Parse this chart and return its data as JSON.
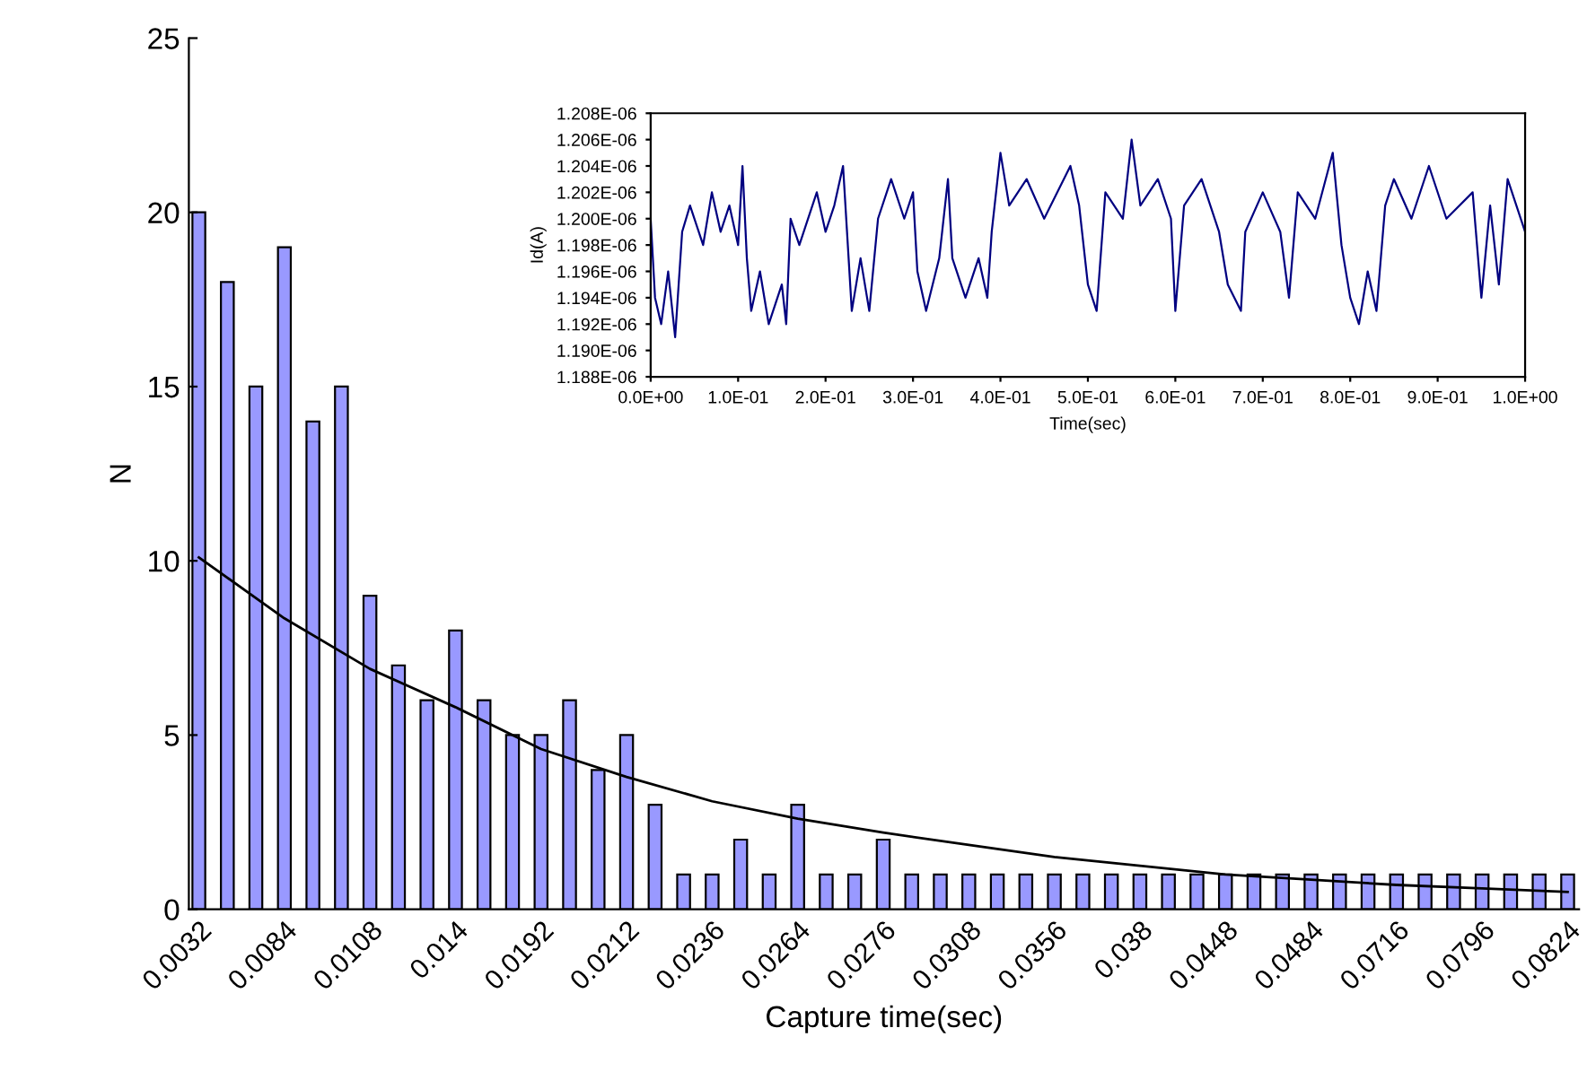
{
  "chart_data": [
    {
      "type": "bar",
      "xlabel": "Capture time(sec)",
      "ylabel": "N",
      "categories": [
        "0.0032",
        null,
        null,
        "0.0084",
        null,
        null,
        "0.0108",
        null,
        null,
        "0.014",
        null,
        null,
        "0.0192",
        null,
        null,
        "0.0212",
        null,
        null,
        "0.0236",
        null,
        null,
        "0.0264",
        null,
        null,
        "0.0276",
        null,
        null,
        "0.0308",
        null,
        null,
        "0.0356",
        null,
        null,
        "0.038",
        null,
        null,
        "0.0448",
        null,
        null,
        "0.0484",
        null,
        null,
        "0.0716",
        null,
        null,
        "0.0796",
        null,
        null,
        "0.0824"
      ],
      "series": [
        {
          "type": "bar",
          "color": "#9999ff",
          "values": [
            20,
            18,
            15,
            19,
            14,
            15,
            9,
            7,
            6,
            8,
            6,
            5,
            5,
            6,
            4,
            5,
            3,
            1,
            1,
            2,
            1,
            3,
            1,
            1,
            2,
            1,
            1,
            1,
            1,
            1,
            1,
            1,
            1,
            1,
            1,
            1,
            1,
            1,
            1,
            1,
            1,
            1,
            1,
            1,
            1,
            1,
            1,
            1,
            1
          ]
        },
        {
          "type": "line",
          "color": "#000000",
          "x": [
            "0.0032",
            "0.0084",
            "0.0108",
            "0.014",
            "0.0192",
            "0.0212",
            "0.0236",
            "0.0264",
            "0.0276",
            "0.0308",
            "0.0356",
            "0.038",
            "0.0448",
            "0.0484",
            "0.0716",
            "0.0796",
            "0.0824"
          ],
          "values": [
            10.1,
            8.35,
            6.9,
            5.8,
            4.6,
            3.8,
            3.1,
            2.6,
            2.2,
            1.85,
            1.5,
            1.25,
            1.0,
            0.85,
            0.7,
            0.6,
            0.5
          ]
        }
      ],
      "ylim": [
        0,
        25
      ],
      "yticks": [
        0,
        5,
        10,
        15,
        20,
        25
      ],
      "grid": false,
      "legend": false
    },
    {
      "type": "line",
      "xlabel": "Time(sec)",
      "ylabel": "Id(A)",
      "marker": "none",
      "grid": false,
      "legend": false,
      "xlim": [
        0,
        1
      ],
      "xticks": [
        {
          "value": 0,
          "label": "0.0E+00"
        },
        {
          "value": 0.1,
          "label": "1.0E-01"
        },
        {
          "value": 0.2,
          "label": "2.0E-01"
        },
        {
          "value": 0.3,
          "label": "3.0E-01"
        },
        {
          "value": 0.4,
          "label": "4.0E-01"
        },
        {
          "value": 0.5,
          "label": "5.0E-01"
        },
        {
          "value": 0.6,
          "label": "6.0E-01"
        },
        {
          "value": 0.7,
          "label": "7.0E-01"
        },
        {
          "value": 0.8,
          "label": "8.0E-01"
        },
        {
          "value": 0.9,
          "label": "9.0E-01"
        },
        {
          "value": 1.0,
          "label": "1.0E+00"
        }
      ],
      "ylim": [
        1.188e-06,
        1.208e-06
      ],
      "yticks": [
        {
          "value": 1.188e-06,
          "label": "1.188E-06"
        },
        {
          "value": 1.19e-06,
          "label": "1.190E-06"
        },
        {
          "value": 1.192e-06,
          "label": "1.192E-06"
        },
        {
          "value": 1.194e-06,
          "label": "1.194E-06"
        },
        {
          "value": 1.196e-06,
          "label": "1.196E-06"
        },
        {
          "value": 1.198e-06,
          "label": "1.198E-06"
        },
        {
          "value": 1.2e-06,
          "label": "1.200E-06"
        },
        {
          "value": 1.202e-06,
          "label": "1.202E-06"
        },
        {
          "value": 1.204e-06,
          "label": "1.204E-06"
        },
        {
          "value": 1.206e-06,
          "label": "1.206E-06"
        },
        {
          "value": 1.208e-06,
          "label": "1.208E-06"
        }
      ],
      "series": [
        {
          "color": "#000080",
          "x": [
            0.0,
            0.005,
            0.012,
            0.02,
            0.028,
            0.032,
            0.036,
            0.045,
            0.06,
            0.07,
            0.08,
            0.09,
            0.1,
            0.105,
            0.11,
            0.115,
            0.125,
            0.135,
            0.15,
            0.155,
            0.16,
            0.17,
            0.19,
            0.2,
            0.21,
            0.22,
            0.23,
            0.24,
            0.25,
            0.26,
            0.275,
            0.29,
            0.3,
            0.305,
            0.315,
            0.33,
            0.34,
            0.345,
            0.36,
            0.375,
            0.385,
            0.39,
            0.4,
            0.41,
            0.43,
            0.45,
            0.48,
            0.49,
            0.5,
            0.51,
            0.52,
            0.54,
            0.55,
            0.56,
            0.58,
            0.595,
            0.6,
            0.61,
            0.63,
            0.65,
            0.66,
            0.675,
            0.68,
            0.7,
            0.72,
            0.73,
            0.74,
            0.76,
            0.78,
            0.79,
            0.8,
            0.81,
            0.82,
            0.83,
            0.84,
            0.85,
            0.87,
            0.89,
            0.91,
            0.94,
            0.95,
            0.96,
            0.97,
            0.98,
            1.0
          ],
          "values": [
            1.2e-06,
            1.194e-06,
            1.192e-06,
            1.196e-06,
            1.191e-06,
            1.195e-06,
            1.199e-06,
            1.201e-06,
            1.198e-06,
            1.202e-06,
            1.199e-06,
            1.201e-06,
            1.198e-06,
            1.204e-06,
            1.197e-06,
            1.193e-06,
            1.196e-06,
            1.192e-06,
            1.195e-06,
            1.192e-06,
            1.2e-06,
            1.198e-06,
            1.202e-06,
            1.199e-06,
            1.201e-06,
            1.204e-06,
            1.193e-06,
            1.197e-06,
            1.193e-06,
            1.2e-06,
            1.203e-06,
            1.2e-06,
            1.202e-06,
            1.196e-06,
            1.193e-06,
            1.197e-06,
            1.203e-06,
            1.197e-06,
            1.194e-06,
            1.197e-06,
            1.194e-06,
            1.199e-06,
            1.205e-06,
            1.201e-06,
            1.203e-06,
            1.2e-06,
            1.204e-06,
            1.201e-06,
            1.195e-06,
            1.193e-06,
            1.202e-06,
            1.2e-06,
            1.206e-06,
            1.201e-06,
            1.203e-06,
            1.2e-06,
            1.193e-06,
            1.201e-06,
            1.203e-06,
            1.199e-06,
            1.195e-06,
            1.193e-06,
            1.199e-06,
            1.202e-06,
            1.199e-06,
            1.194e-06,
            1.202e-06,
            1.2e-06,
            1.205e-06,
            1.198e-06,
            1.194e-06,
            1.192e-06,
            1.196e-06,
            1.193e-06,
            1.201e-06,
            1.203e-06,
            1.2e-06,
            1.204e-06,
            1.2e-06,
            1.202e-06,
            1.194e-06,
            1.201e-06,
            1.195e-06,
            1.203e-06,
            1.199e-06
          ]
        }
      ]
    }
  ]
}
